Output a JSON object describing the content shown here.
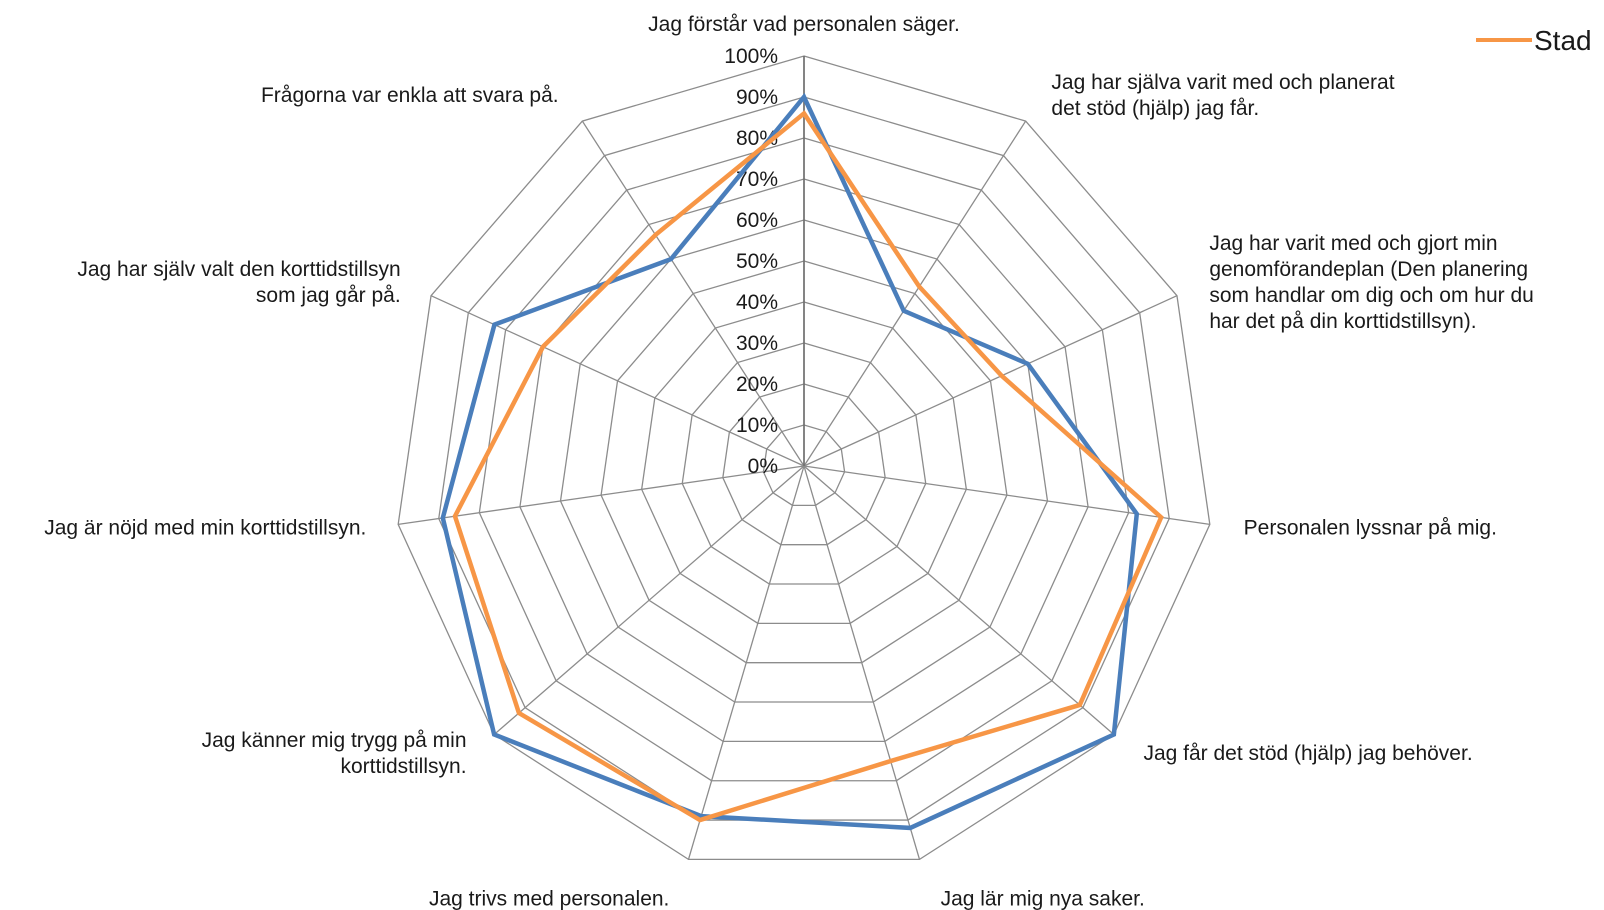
{
  "chart_data": {
    "type": "radar",
    "categories": [
      [
        "Jag förstår vad personalen säger."
      ],
      [
        "Jag har själva varit med och planerat",
        "det stöd (hjälp) jag får."
      ],
      [
        "Jag har varit med och gjort min",
        "genomförandeplan (Den planering",
        "som handlar om dig och om hur du",
        "har det på din korttidstillsyn)."
      ],
      [
        "Personalen lyssnar på mig."
      ],
      [
        "Jag får det stöd (hjälp) jag behöver."
      ],
      [
        "Jag lär mig nya saker."
      ],
      [
        "Jag trivs med personalen."
      ],
      [
        "Jag känner mig trygg på min",
        "korttidstillsyn."
      ],
      [
        "Jag är nöjd med min korttidstillsyn."
      ],
      [
        "Jag har själv valt den korttidstillsyn",
        "som jag går på."
      ],
      [
        "Frågorna var enkla att svara på."
      ]
    ],
    "rticks": [
      "0%",
      "10%",
      "20%",
      "30%",
      "40%",
      "50%",
      "60%",
      "70%",
      "80%",
      "90%",
      "100%"
    ],
    "rlim": [
      0,
      100
    ],
    "series": [
      {
        "name": "",
        "color": "#4a7ebb",
        "values": [
          90,
          45,
          60,
          82,
          100,
          92,
          89,
          100,
          89,
          83,
          60
        ]
      },
      {
        "name": "Stad",
        "color": "#f79646",
        "values": [
          86,
          52,
          53,
          88,
          89,
          75,
          90,
          92,
          86,
          70,
          67
        ]
      }
    ],
    "legend": {
      "position": "top-right"
    },
    "grid": true
  }
}
